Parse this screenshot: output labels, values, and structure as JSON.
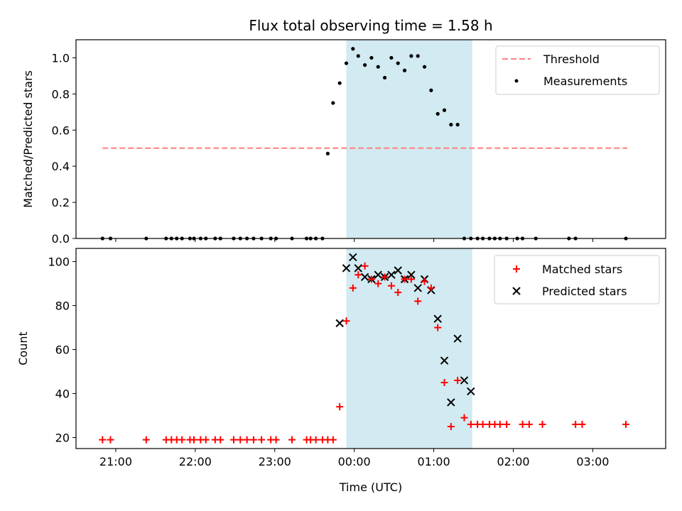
{
  "chart_data": [
    {
      "type": "scatter",
      "title": "Flux total observing time = 1.58 h",
      "ylabel": "Matched/Predicted stars",
      "xlabel": "",
      "xlim": [
        "20:30",
        "03:55"
      ],
      "ylim": [
        0,
        1.1
      ],
      "yticks": [
        "0.0",
        "0.2",
        "0.4",
        "0.6",
        "0.8",
        "1.0"
      ],
      "grid": false,
      "legend_position": "top-right",
      "shaded_interval": {
        "start": "23:54",
        "end": "01:29",
        "color": "#add8e6"
      },
      "threshold": {
        "name": "Threshold",
        "value": 0.5,
        "x_start": "20:50",
        "x_end": "03:26",
        "color": "#ff7f7f",
        "style": "dashed"
      },
      "series": [
        {
          "name": "Measurements",
          "color": "#000000",
          "marker": "dot",
          "x": [
            "20:50",
            "20:56",
            "21:23",
            "21:38",
            "21:42",
            "21:46",
            "21:50",
            "21:56",
            "21:59",
            "22:04",
            "22:08",
            "22:15",
            "22:19",
            "22:29",
            "22:34",
            "22:39",
            "22:44",
            "22:50",
            "22:57",
            "23:01",
            "23:13",
            "23:24",
            "23:27",
            "23:31",
            "23:36",
            "23:40",
            "23:44",
            "23:49",
            "23:54",
            "23:59",
            "00:03",
            "00:08",
            "00:13",
            "00:18",
            "00:23",
            "00:28",
            "00:33",
            "00:38",
            "00:43",
            "00:48",
            "00:53",
            "00:58",
            "01:03",
            "01:08",
            "01:13",
            "01:18",
            "01:23",
            "01:28",
            "01:33",
            "01:37",
            "01:42",
            "01:46",
            "01:50",
            "01:55",
            "02:03",
            "02:07",
            "02:17",
            "02:42",
            "02:47",
            "03:25"
          ],
          "y": [
            0,
            0,
            0,
            0,
            0,
            0,
            0,
            0,
            0,
            0,
            0,
            0,
            0,
            0,
            0,
            0,
            0,
            0,
            0,
            0,
            0,
            0,
            0,
            0,
            0,
            0.47,
            0.75,
            0.86,
            0.97,
            1.05,
            1.01,
            0.96,
            1.0,
            0.95,
            0.89,
            1.0,
            0.97,
            0.93,
            1.01,
            1.01,
            0.95,
            0.82,
            0.69,
            0.71,
            0.63,
            0.63,
            0,
            0,
            0,
            0,
            0,
            0,
            0,
            0,
            0,
            0,
            0,
            0,
            0,
            0
          ]
        }
      ]
    },
    {
      "type": "scatter",
      "title": "",
      "xlabel": "Time (UTC)",
      "ylabel": "Count",
      "xlim": [
        "20:30",
        "03:55"
      ],
      "ylim": [
        15,
        106
      ],
      "xticks": [
        "21:00",
        "22:00",
        "23:00",
        "00:00",
        "01:00",
        "02:00",
        "03:00"
      ],
      "yticks": [
        "20",
        "40",
        "60",
        "80",
        "100"
      ],
      "grid": false,
      "legend_position": "top-right",
      "shaded_interval": {
        "start": "23:54",
        "end": "01:29",
        "color": "#add8e6"
      },
      "series": [
        {
          "name": "Matched stars",
          "color": "#ff0000",
          "marker": "plus",
          "points": [
            [
              "20:50",
              19
            ],
            [
              "20:56",
              19
            ],
            [
              "21:23",
              19
            ],
            [
              "21:38",
              19
            ],
            [
              "21:42",
              19
            ],
            [
              "21:46",
              19
            ],
            [
              "21:50",
              19
            ],
            [
              "21:56",
              19
            ],
            [
              "21:59",
              19
            ],
            [
              "22:04",
              19
            ],
            [
              "22:08",
              19
            ],
            [
              "22:15",
              19
            ],
            [
              "22:19",
              19
            ],
            [
              "22:29",
              19
            ],
            [
              "22:34",
              19
            ],
            [
              "22:39",
              19
            ],
            [
              "22:44",
              19
            ],
            [
              "22:50",
              19
            ],
            [
              "22:57",
              19
            ],
            [
              "23:01",
              19
            ],
            [
              "23:13",
              19
            ],
            [
              "23:24",
              19
            ],
            [
              "23:27",
              19
            ],
            [
              "23:31",
              19
            ],
            [
              "23:36",
              19
            ],
            [
              "23:40",
              19
            ],
            [
              "23:44",
              19
            ],
            [
              "23:49",
              34
            ],
            [
              "23:54",
              73
            ],
            [
              "23:59",
              88
            ],
            [
              "00:03",
              94
            ],
            [
              "00:08",
              98
            ],
            [
              "00:13",
              92
            ],
            [
              "00:18",
              90
            ],
            [
              "00:23",
              93
            ],
            [
              "00:28",
              89
            ],
            [
              "00:33",
              86
            ],
            [
              "00:38",
              92
            ],
            [
              "00:43",
              92
            ],
            [
              "00:48",
              82
            ],
            [
              "00:53",
              91
            ],
            [
              "00:58",
              88
            ],
            [
              "01:03",
              70
            ],
            [
              "01:08",
              45
            ],
            [
              "01:13",
              25
            ],
            [
              "01:18",
              46
            ],
            [
              "01:23",
              29
            ],
            [
              "01:28",
              26
            ],
            [
              "01:33",
              26
            ],
            [
              "01:37",
              26
            ],
            [
              "01:42",
              26
            ],
            [
              "01:46",
              26
            ],
            [
              "01:50",
              26
            ],
            [
              "01:55",
              26
            ],
            [
              "02:07",
              26
            ],
            [
              "02:12",
              26
            ],
            [
              "02:22",
              26
            ],
            [
              "02:47",
              26
            ],
            [
              "02:52",
              26
            ],
            [
              "03:25",
              26
            ]
          ]
        },
        {
          "name": "Predicted stars",
          "color": "#000000",
          "marker": "x",
          "points": [
            [
              "23:49",
              72
            ],
            [
              "23:54",
              97
            ],
            [
              "23:59",
              102
            ],
            [
              "00:03",
              97
            ],
            [
              "00:08",
              93
            ],
            [
              "00:13",
              92
            ],
            [
              "00:18",
              94
            ],
            [
              "00:23",
              93
            ],
            [
              "00:28",
              94
            ],
            [
              "00:33",
              96
            ],
            [
              "00:38",
              92
            ],
            [
              "00:43",
              94
            ],
            [
              "00:48",
              88
            ],
            [
              "00:53",
              92
            ],
            [
              "00:58",
              87
            ],
            [
              "01:03",
              74
            ],
            [
              "01:08",
              55
            ],
            [
              "01:13",
              36
            ],
            [
              "01:18",
              65
            ],
            [
              "01:23",
              46
            ],
            [
              "01:28",
              41
            ]
          ]
        }
      ]
    }
  ]
}
